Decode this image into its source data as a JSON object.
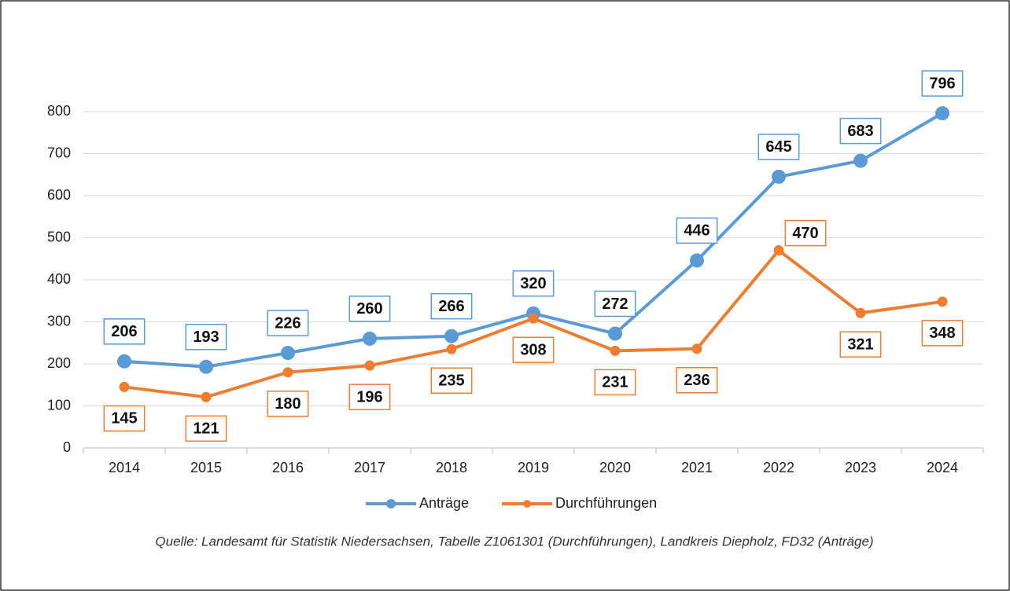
{
  "chart_data": {
    "type": "line",
    "categories": [
      "2014",
      "2015",
      "2016",
      "2017",
      "2018",
      "2019",
      "2020",
      "2021",
      "2022",
      "2023",
      "2024"
    ],
    "series": [
      {
        "name": "Anträge",
        "color": "#5b9bd5",
        "values": [
          206,
          193,
          226,
          260,
          266,
          320,
          272,
          446,
          645,
          683,
          796
        ]
      },
      {
        "name": "Durchführungen",
        "color": "#ed7d31",
        "values": [
          145,
          121,
          180,
          196,
          235,
          308,
          231,
          236,
          470,
          321,
          348
        ]
      }
    ],
    "ylim": [
      0,
      800
    ],
    "yticks": [
      0,
      100,
      200,
      300,
      400,
      500,
      600,
      700,
      800
    ],
    "grid": true,
    "legend": "bottom",
    "note": "Quelle: Landesamt für Statistik Niedersachsen, Tabelle Z1061301 (Durchführungen), Landkreis Diepholz, FD32 (Anträge)"
  }
}
